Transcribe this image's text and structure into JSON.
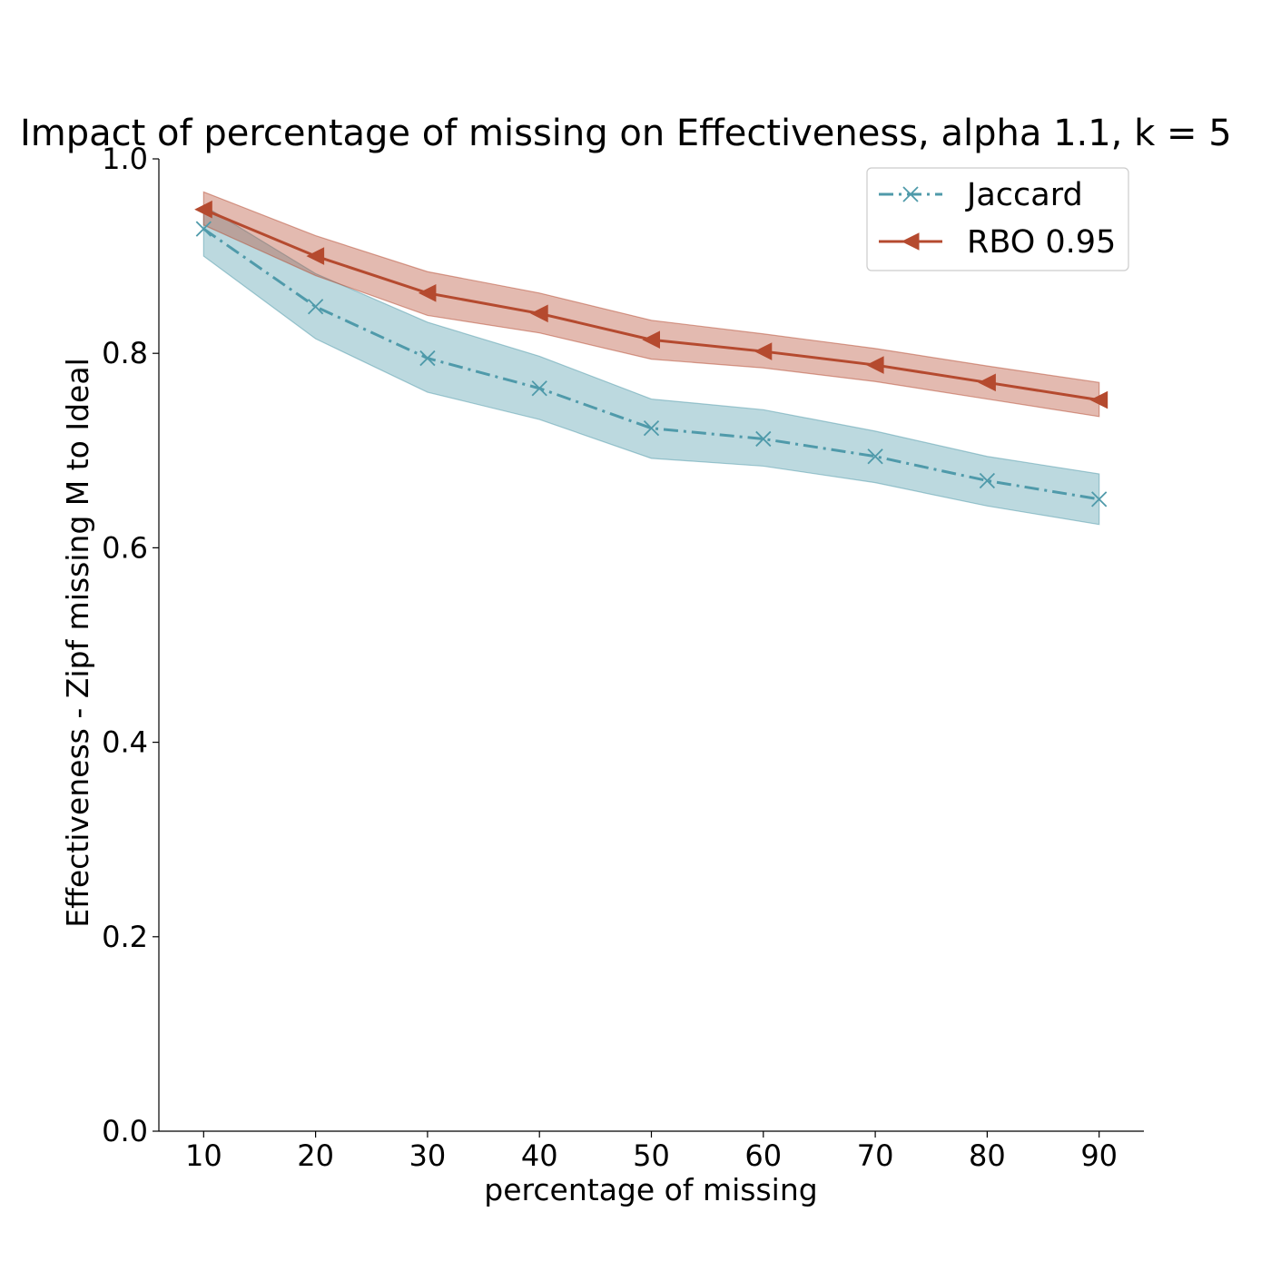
{
  "chart_data": {
    "type": "line",
    "title": "Impact of percentage of missing on Effectiveness, alpha 1.1, k = 5",
    "xlabel": "percentage of missing",
    "ylabel": "Effectiveness - Zipf missing M to Ideal",
    "x": [
      10,
      20,
      30,
      40,
      50,
      60,
      70,
      80,
      90
    ],
    "xlim": [
      6,
      94
    ],
    "ylim": [
      0.0,
      1.0
    ],
    "xticks": [
      10,
      20,
      30,
      40,
      50,
      60,
      70,
      80,
      90
    ],
    "yticks": [
      0.0,
      0.2,
      0.4,
      0.6,
      0.8,
      1.0
    ],
    "xtick_labels": [
      "10",
      "20",
      "30",
      "40",
      "50",
      "60",
      "70",
      "80",
      "90"
    ],
    "ytick_labels": [
      "0.0",
      "0.2",
      "0.4",
      "0.6",
      "0.8",
      "1.0"
    ],
    "grid": false,
    "legend_position": "top-right",
    "series": [
      {
        "name": "Jaccard",
        "color": "#4f9aaa",
        "marker": "x",
        "linestyle": "dashdot",
        "values": [
          0.928,
          0.848,
          0.795,
          0.764,
          0.723,
          0.712,
          0.694,
          0.669,
          0.65
        ],
        "lower": [
          0.9,
          0.815,
          0.76,
          0.732,
          0.692,
          0.684,
          0.667,
          0.643,
          0.624
        ],
        "upper": [
          0.952,
          0.882,
          0.832,
          0.797,
          0.753,
          0.742,
          0.72,
          0.694,
          0.676
        ]
      },
      {
        "name": "RBO 0.95",
        "color": "#b54a2f",
        "marker": "triangle-left",
        "linestyle": "solid",
        "values": [
          0.948,
          0.9,
          0.862,
          0.841,
          0.814,
          0.802,
          0.788,
          0.77,
          0.752
        ],
        "lower": [
          0.932,
          0.88,
          0.839,
          0.821,
          0.794,
          0.785,
          0.771,
          0.753,
          0.735
        ],
        "upper": [
          0.966,
          0.921,
          0.884,
          0.862,
          0.834,
          0.82,
          0.805,
          0.787,
          0.77
        ]
      }
    ]
  }
}
